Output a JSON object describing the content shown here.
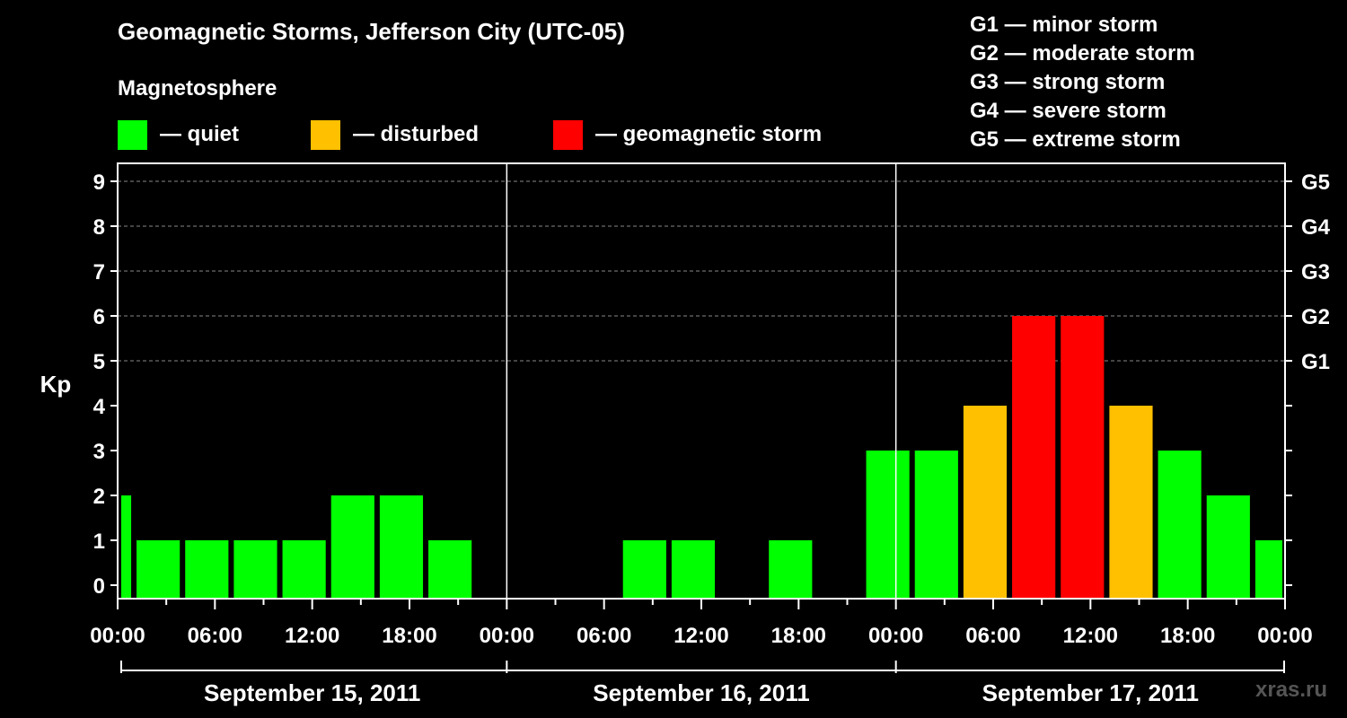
{
  "title": "Geomagnetic Storms, Jefferson City (UTC-05)",
  "magnetosphere_label": "Magnetosphere",
  "legend": [
    {
      "label": "— quiet",
      "color": "#00ff00"
    },
    {
      "label": "— disturbed",
      "color": "#ffc000"
    },
    {
      "label": "— geomagnetic storm",
      "color": "#ff0000"
    }
  ],
  "g_scale": [
    "G1 — minor storm",
    "G2 — moderate storm",
    "G3 — strong storm",
    "G4 — severe storm",
    "G5 — extreme storm"
  ],
  "brand": "xras.ru",
  "chart_data": {
    "type": "bar",
    "ylabel": "Kp",
    "ylim": [
      0,
      9
    ],
    "y_ticks": [
      "0",
      "1",
      "2",
      "3",
      "4",
      "5",
      "6",
      "7",
      "8",
      "9"
    ],
    "right_ticks": [
      {
        "kp": 5,
        "label": "G1"
      },
      {
        "kp": 6,
        "label": "G2"
      },
      {
        "kp": 7,
        "label": "G3"
      },
      {
        "kp": 8,
        "label": "G4"
      },
      {
        "kp": 9,
        "label": "G5"
      }
    ],
    "x_tick_labels": [
      "00:00",
      "06:00",
      "12:00",
      "18:00",
      "00:00",
      "06:00",
      "12:00",
      "18:00",
      "00:00",
      "06:00",
      "12:00",
      "18:00",
      "00:00"
    ],
    "days": [
      "September 15, 2011",
      "September 16, 2011",
      "September 17, 2011"
    ],
    "x_range_hours": [
      0,
      72
    ],
    "grid": "horizontal dashed at Kp 5-9",
    "colors": {
      "quiet": "#00ff00",
      "disturbed": "#ffc000",
      "storm": "#ff0000"
    },
    "bars": [
      {
        "start": 0,
        "end": 1,
        "kp": 2
      },
      {
        "start": 1,
        "end": 4,
        "kp": 1
      },
      {
        "start": 4,
        "end": 7,
        "kp": 1
      },
      {
        "start": 7,
        "end": 10,
        "kp": 1
      },
      {
        "start": 10,
        "end": 13,
        "kp": 1
      },
      {
        "start": 13,
        "end": 16,
        "kp": 2
      },
      {
        "start": 16,
        "end": 19,
        "kp": 2
      },
      {
        "start": 19,
        "end": 22,
        "kp": 1
      },
      {
        "start": 22,
        "end": 25,
        "kp": 0
      },
      {
        "start": 25,
        "end": 28,
        "kp": 0
      },
      {
        "start": 28,
        "end": 31,
        "kp": 0
      },
      {
        "start": 31,
        "end": 34,
        "kp": 1
      },
      {
        "start": 34,
        "end": 37,
        "kp": 1
      },
      {
        "start": 37,
        "end": 40,
        "kp": 0
      },
      {
        "start": 40,
        "end": 43,
        "kp": 1
      },
      {
        "start": 43,
        "end": 46,
        "kp": 0
      },
      {
        "start": 46,
        "end": 49,
        "kp": 3
      },
      {
        "start": 49,
        "end": 52,
        "kp": 3
      },
      {
        "start": 52,
        "end": 55,
        "kp": 4
      },
      {
        "start": 55,
        "end": 58,
        "kp": 6
      },
      {
        "start": 58,
        "end": 61,
        "kp": 6
      },
      {
        "start": 61,
        "end": 64,
        "kp": 4
      },
      {
        "start": 64,
        "end": 67,
        "kp": 3
      },
      {
        "start": 67,
        "end": 70,
        "kp": 2
      },
      {
        "start": 70,
        "end": 72,
        "kp": 1
      }
    ]
  }
}
